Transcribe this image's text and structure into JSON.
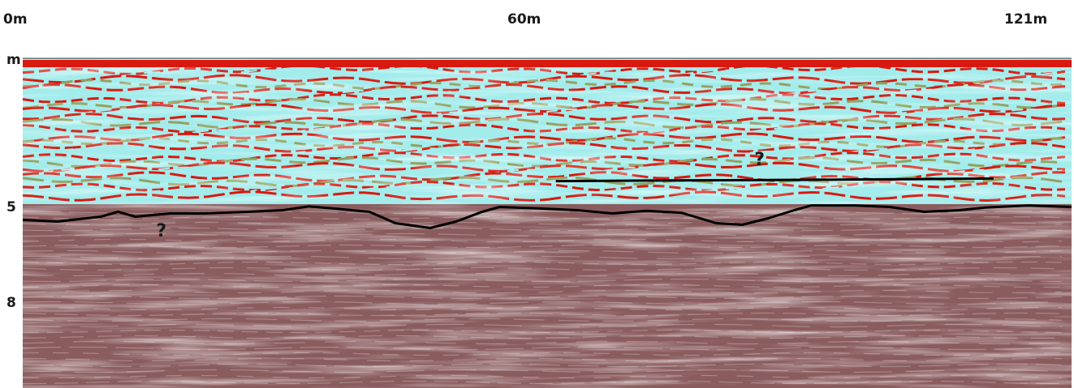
{
  "chart_data": {
    "type": "heatmap",
    "title": "",
    "xlabel": "",
    "ylabel": "",
    "x_ticks": [
      {
        "value": 0,
        "label": "0m"
      },
      {
        "value": 60,
        "label": "60m"
      },
      {
        "value": 121,
        "label": "121m"
      }
    ],
    "y_unit_label": "m",
    "y_ticks": [
      {
        "value": 5,
        "label": "5"
      },
      {
        "value": 8,
        "label": "8"
      }
    ],
    "xlim": [
      0,
      121
    ],
    "ylim": [
      0,
      10.2
    ],
    "y_inverted": true,
    "grid": false,
    "colors": {
      "upper_red": "#d8190f",
      "upper_cyan": "#a3ecec",
      "upper_green": "#93a15f",
      "lower_maroon": "#8a5c5e",
      "lower_light": "#c8b2b2",
      "interpreted_line": "#000000"
    },
    "interpreted_boundary": {
      "name": "",
      "points": [
        [
          0,
          5.0
        ],
        [
          4,
          5.05
        ],
        [
          9,
          4.9
        ],
        [
          11,
          4.75
        ],
        [
          13,
          4.9
        ],
        [
          17,
          4.8
        ],
        [
          21,
          4.8
        ],
        [
          26,
          4.75
        ],
        [
          30,
          4.7
        ],
        [
          33,
          4.58
        ],
        [
          36,
          4.65
        ],
        [
          40,
          4.75
        ],
        [
          43,
          5.1
        ],
        [
          47,
          5.25
        ],
        [
          50,
          5.05
        ],
        [
          53,
          4.75
        ],
        [
          55,
          4.6
        ],
        [
          60,
          4.65
        ],
        [
          64,
          4.7
        ],
        [
          68,
          4.8
        ],
        [
          72,
          4.72
        ],
        [
          76,
          4.78
        ],
        [
          80,
          5.1
        ],
        [
          83,
          5.15
        ],
        [
          86,
          4.95
        ],
        [
          89,
          4.7
        ],
        [
          91,
          4.55
        ],
        [
          96,
          4.55
        ],
        [
          100,
          4.6
        ],
        [
          104,
          4.75
        ],
        [
          108,
          4.7
        ],
        [
          111,
          4.62
        ],
        [
          116,
          4.55
        ],
        [
          121,
          4.6
        ]
      ]
    },
    "interpreted_reflector": {
      "name": "",
      "points": [
        [
          61.5,
          3.8
        ],
        [
          75,
          3.78
        ],
        [
          90,
          3.76
        ],
        [
          112,
          3.72
        ]
      ]
    },
    "annotations": [
      {
        "text": "?",
        "x": 16,
        "y": 5.35
      },
      {
        "text": "?",
        "x": 85,
        "y": 3.15
      }
    ]
  }
}
